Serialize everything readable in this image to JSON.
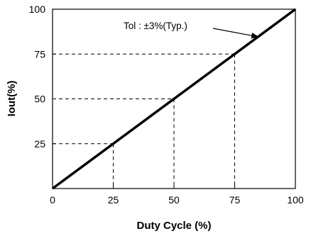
{
  "chart_data": {
    "type": "line",
    "title": "",
    "xlabel": "Duty Cycle (%)",
    "ylabel": "Iout(%)",
    "xlim": [
      0,
      100
    ],
    "ylim": [
      0,
      100
    ],
    "x_ticks": [
      0,
      25,
      50,
      75,
      100
    ],
    "y_ticks": [
      25,
      50,
      75,
      100
    ],
    "x_tick_labels": [
      "0",
      "25",
      "50",
      "75",
      "100"
    ],
    "y_tick_labels": [
      "25",
      "50",
      "75",
      "100"
    ],
    "grid": false,
    "series": [
      {
        "x": [
          0,
          100
        ],
        "y": [
          0,
          100
        ],
        "color": "#000000"
      }
    ],
    "reference_points": [
      {
        "x": 25,
        "y": 25
      },
      {
        "x": 50,
        "y": 50
      },
      {
        "x": 75,
        "y": 75
      }
    ],
    "annotation": {
      "text": "Tol : ±3%(Typ.)",
      "x": 85,
      "y": 85
    }
  }
}
